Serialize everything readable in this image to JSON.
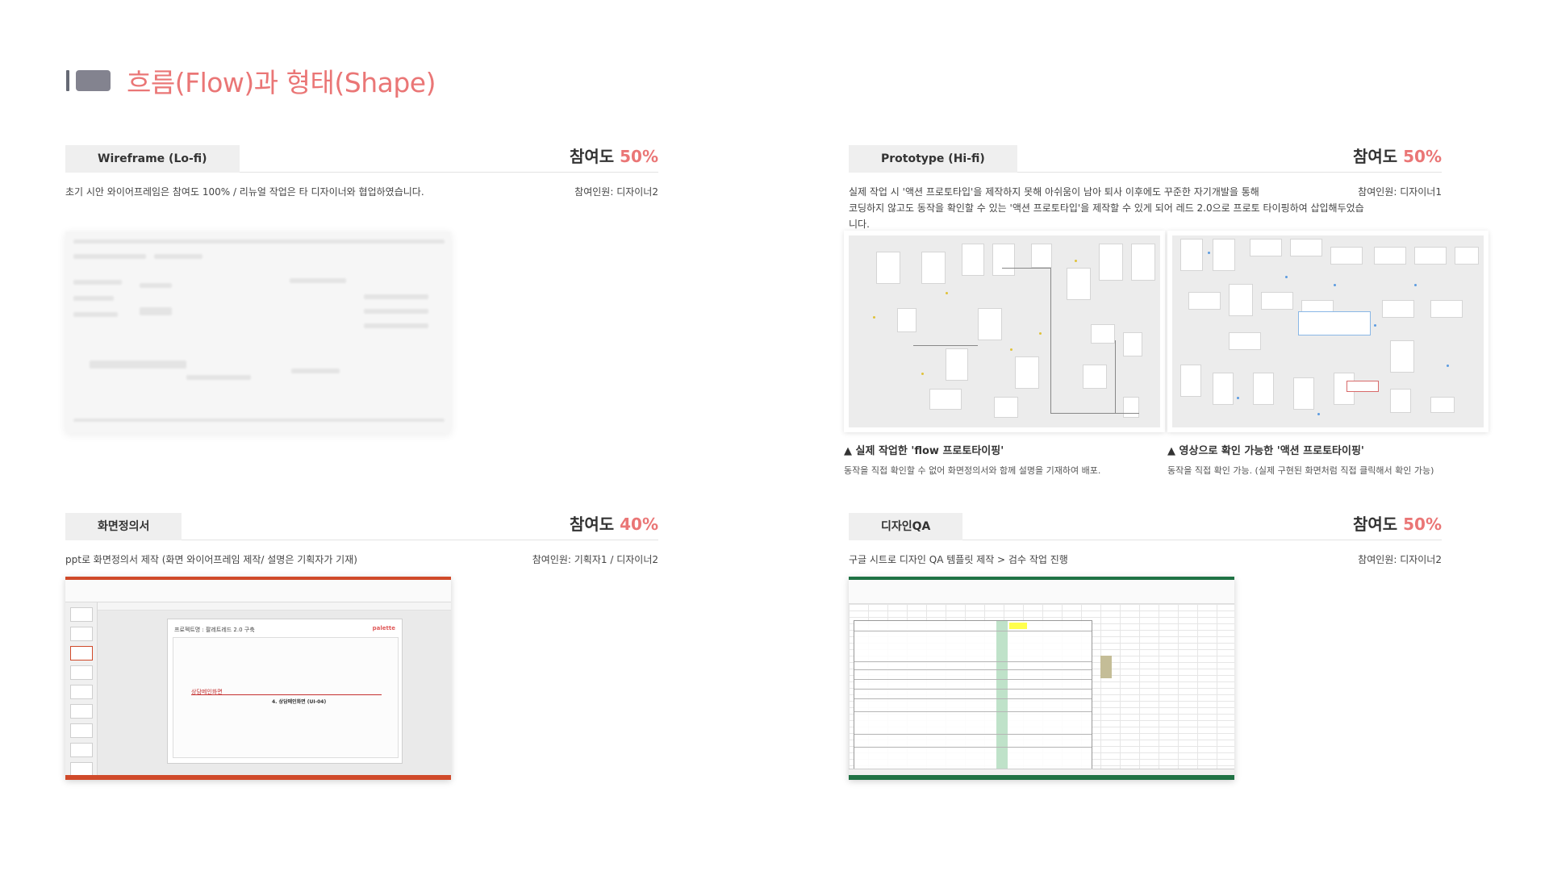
{
  "page": {
    "title": "흐름(Flow)과 형태(Shape)"
  },
  "colors": {
    "accent": "#ea7676",
    "label_bg": "#efefef",
    "title_block": "#83838f"
  },
  "sections": {
    "wireframe": {
      "label": "Wireframe  (Lo-fi)",
      "participation_label": "참여도",
      "participation_value": "50%",
      "description": "초기 시안 와이어프레임은 참여도 100% / 리뉴얼 작업은 타 디자이너와 협업하였습니다.",
      "members": "참여인원: 디자이너2"
    },
    "prototype": {
      "label": "Prototype (Hi-fi)",
      "participation_label": "참여도",
      "participation_value": "50%",
      "description_line1": "실제 작업 시 '액션 프로토타입'을 제작하지 못해 아쉬움이 남아 퇴사 이후에도 꾸준한 자기개발을 통해",
      "description_line2": "코딩하지 않고도 동작을 확인할 수 있는 '액션 프로토타입'을 제작할 수 있게 되어 레드 2.0으로 프로토 타이핑하여 삽입해두었습니다.",
      "members": "참여인원: 디자이너1",
      "captions": [
        {
          "title": "▲ 실제 작업한 'flow 프로토타이핑'",
          "desc": "동작을 직접 확인할 수 없어 화면정의서와 함께 설명을 기재하여 배포."
        },
        {
          "title": "▲ 영상으로 확인 가능한 '액션 프로토타이핑'",
          "desc": "동작을 직접 확인 가능. (실제 구현된 화면처럼 직접 클릭해서 확인 가능)"
        }
      ]
    },
    "spec": {
      "label": "화면정의서",
      "participation_label": "참여도",
      "participation_value": "40%",
      "description": "ppt로 화면정의서 제작 (화면 와이어프레임 제작/ 설명은 기획자가 기재)",
      "members": "참여인원: 기획자1 / 디자이너2",
      "slide": {
        "title": "프로젝트명 : 팔레트레드 2.0 구축",
        "logo": "palette",
        "label_main": "상담메인화면",
        "label_sub": "4. 상담메인화면 (UI-04)"
      }
    },
    "qa": {
      "label": "디자인QA",
      "participation_label": "참여도",
      "participation_value": "50%",
      "description": "구글 시트로 디자인 QA 템플릿 제작 > 검수 작업 진행",
      "members": "참여인원: 디자이너2"
    }
  }
}
